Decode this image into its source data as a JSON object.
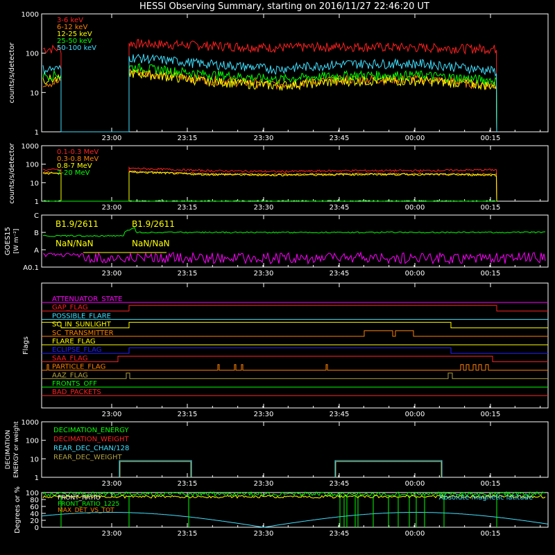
{
  "title": "HESSI Observing Summary, starting on 2016/11/27 22:46:20 UT",
  "time_ticks": [
    "23:00",
    "23:15",
    "23:30",
    "23:45",
    "00:00",
    "00:15"
  ],
  "colors": {
    "red": "#ff2020",
    "orange": "#ff8000",
    "yellow": "#ffff00",
    "green": "#00ff00",
    "cyan": "#40e0ff",
    "magenta": "#ff00ff",
    "blue": "#2020ff",
    "olive": "#b0a040",
    "white": "#ffffff"
  },
  "chart_data": [
    {
      "type": "line",
      "panel": "rates_low",
      "ylabel": "counts/s/detector",
      "y_scale": "log",
      "ylim": [
        1,
        1000
      ],
      "y_ticks": [
        "1",
        "10",
        "100",
        "1000"
      ],
      "series": [
        {
          "name": "3-6 keV",
          "color": "red",
          "before": 130,
          "plateau": [
            180,
            160,
            140,
            150,
            140,
            130
          ]
        },
        {
          "name": "6-12 keV",
          "color": "orange",
          "before": 18,
          "plateau": [
            35,
            22,
            16,
            22,
            22,
            15
          ]
        },
        {
          "name": "12-25 keV",
          "color": "yellow",
          "before": 22,
          "plateau": [
            32,
            20,
            15,
            20,
            20,
            15
          ]
        },
        {
          "name": "25-50 keV",
          "color": "green",
          "before": 28,
          "plateau": [
            45,
            30,
            22,
            28,
            28,
            20
          ]
        },
        {
          "name": "50-100 keV",
          "color": "cyan",
          "before": 40,
          "plateau": [
            80,
            55,
            40,
            55,
            55,
            35
          ]
        }
      ]
    },
    {
      "type": "line",
      "panel": "rates_high",
      "ylabel": "counts/s/detector",
      "y_scale": "log",
      "ylim": [
        1,
        1000
      ],
      "y_ticks": [
        "1",
        "10",
        "100",
        "1000"
      ],
      "series": [
        {
          "name": "0.1-0.3 MeV",
          "color": "red",
          "before": 50,
          "plateau": [
            60,
            45,
            40,
            45,
            45,
            50
          ]
        },
        {
          "name": "0.3-0.8 MeV",
          "color": "orange",
          "before": 35,
          "plateau": [
            40,
            30,
            28,
            30,
            30,
            28
          ]
        },
        {
          "name": "0.8-7 MeV",
          "color": "yellow",
          "before": 32,
          "plateau": [
            38,
            28,
            26,
            28,
            28,
            26
          ]
        },
        {
          "name": "7-20 MeV",
          "color": "green",
          "before": 1,
          "plateau": [
            1,
            1,
            1,
            1,
            1,
            1
          ]
        }
      ]
    },
    {
      "type": "line",
      "panel": "goes",
      "ylabel": "GOES15",
      "yunit": "[W m⁻²]",
      "y_ticks": [
        "A0.1",
        "A",
        "B",
        "C"
      ],
      "annotations": [
        "B1.9/2611",
        "B1.9/2611",
        "NaN/NaN",
        "NaN/NaN"
      ]
    },
    {
      "type": "step",
      "panel": "flags",
      "ylabel": "Flags",
      "flags": [
        {
          "name": "ATTENUATOR_STATE",
          "color": "magenta"
        },
        {
          "name": "GAP_FLAG",
          "color": "red"
        },
        {
          "name": "POSSIBLE_FLARE",
          "color": "cyan"
        },
        {
          "name": "SC_IN_SUNLIGHT",
          "color": "yellow"
        },
        {
          "name": "SC_TRANSMITTER",
          "color": "orange"
        },
        {
          "name": "FLARE_FLAG",
          "color": "yellow"
        },
        {
          "name": "ECLIPSE_FLAG",
          "color": "blue"
        },
        {
          "name": "SAA_FLAG",
          "color": "red"
        },
        {
          "name": "PARTICLE_FLAG",
          "color": "orange"
        },
        {
          "name": "AAZ_FLAG",
          "color": "olive"
        },
        {
          "name": "FRONTS_OFF",
          "color": "green"
        },
        {
          "name": "BAD_PACKETS",
          "color": "red"
        }
      ]
    },
    {
      "type": "step",
      "panel": "decimation",
      "ylabel": "DECIMATION ENERGY or weight",
      "y_scale": "log",
      "ylim": [
        1,
        1000
      ],
      "y_ticks": [
        "1",
        "10",
        "100",
        "1000"
      ],
      "series": [
        {
          "name": "DECIMATION_ENERGY",
          "color": "green"
        },
        {
          "name": "DECIMATION_WEIGHT",
          "color": "red"
        },
        {
          "name": "REAR_DEC_CHAN/128",
          "color": "cyan"
        },
        {
          "name": "REAR_DEC_WEIGHT",
          "color": "olive"
        }
      ]
    },
    {
      "type": "line",
      "panel": "ratios",
      "ylabel": "Degrees or %",
      "ylim": [
        0,
        100
      ],
      "y_ticks": [
        "0",
        "20",
        "40",
        "60",
        "80",
        "100"
      ],
      "series": [
        {
          "name": "FRONT_RATIO",
          "color": "white"
        },
        {
          "name": "FRONT_RATIO_1225",
          "color": "green"
        },
        {
          "name": "MAX_DET_VS_TOT",
          "color": "orange"
        }
      ],
      "extra_label": "Absolute magnetic latitude"
    }
  ]
}
